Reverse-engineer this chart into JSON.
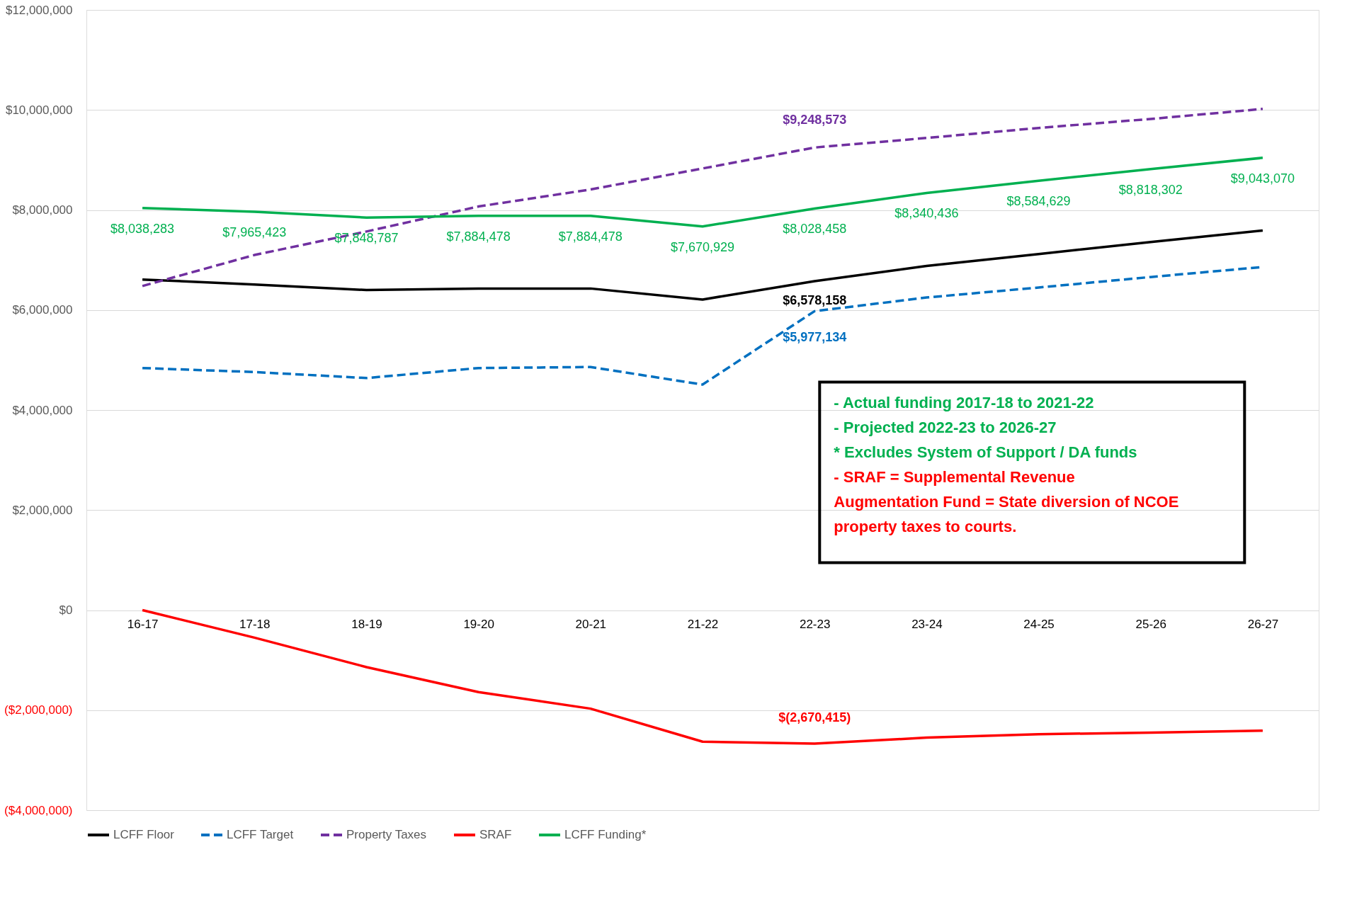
{
  "chart_data": {
    "type": "line",
    "categories": [
      "16-17",
      "17-18",
      "18-19",
      "19-20",
      "20-21",
      "21-22",
      "22-23",
      "23-24",
      "24-25",
      "25-26",
      "26-27"
    ],
    "series": [
      {
        "name": "LCFF Floor",
        "color": "#000000",
        "line_style": "solid",
        "values": [
          6610000,
          6510000,
          6400000,
          6430000,
          6430000,
          6210000,
          6578158,
          6880000,
          7120000,
          7360000,
          7590000
        ],
        "value_labels": [
          null,
          null,
          null,
          null,
          null,
          null,
          "$6,578,158",
          null,
          null,
          null,
          null
        ]
      },
      {
        "name": "LCFF Target",
        "color": "#0070c0",
        "line_style": "dashed",
        "values": [
          4840000,
          4760000,
          4640000,
          4840000,
          4860000,
          4510000,
          5977134,
          6250000,
          6450000,
          6660000,
          6860000
        ],
        "value_labels": [
          null,
          null,
          null,
          null,
          null,
          null,
          "$5,977,134",
          null,
          null,
          null,
          null
        ]
      },
      {
        "name": "Property Taxes",
        "color": "#7030a0",
        "line_style": "dashed",
        "values": [
          6480000,
          7100000,
          7570000,
          8070000,
          8410000,
          8830000,
          9248573,
          9440000,
          9640000,
          9820000,
          10020000
        ],
        "value_labels": [
          null,
          null,
          null,
          null,
          null,
          null,
          "$9,248,573",
          null,
          null,
          null,
          null
        ]
      },
      {
        "name": "SRAF",
        "color": "#ff0000",
        "line_style": "solid",
        "values": [
          0,
          -550000,
          -1140000,
          -1640000,
          -1970000,
          -2630000,
          -2670415,
          -2550000,
          -2480000,
          -2450000,
          -2410000
        ],
        "value_labels": [
          null,
          null,
          null,
          null,
          null,
          null,
          "$(2,670,415)",
          null,
          null,
          null,
          null
        ]
      },
      {
        "name": "LCFF Funding*",
        "color": "#00b050",
        "line_style": "solid",
        "values": [
          8038283,
          7965423,
          7848787,
          7884478,
          7884478,
          7670929,
          8028458,
          8340436,
          8584629,
          8818302,
          9043070
        ],
        "value_labels": [
          "$8,038,283",
          "$7,965,423",
          "$7,848,787",
          "$7,884,478",
          "$7,884,478",
          "$7,670,929",
          "$8,028,458",
          "$8,340,436",
          "$8,584,629",
          "$8,818,302",
          "$9,043,070"
        ]
      }
    ],
    "ylim": [
      -4000000,
      12000000
    ],
    "yticks": [
      {
        "value": -4000000,
        "label": "($4,000,000)"
      },
      {
        "value": -2000000,
        "label": "($2,000,000)"
      },
      {
        "value": 0,
        "label": "$0"
      },
      {
        "value": 2000000,
        "label": "$2,000,000"
      },
      {
        "value": 4000000,
        "label": "$4,000,000"
      },
      {
        "value": 6000000,
        "label": "$6,000,000"
      },
      {
        "value": 8000000,
        "label": "$8,000,000"
      },
      {
        "value": 10000000,
        "label": "$10,000,000"
      },
      {
        "value": 12000000,
        "label": "$12,000,000"
      }
    ],
    "grid": "y",
    "legend": "bottom",
    "annotations": [
      "- Actual funding 2017-18 to 2021-22",
      "- Projected 2022-23 to 2026-27",
      "* Excludes System of Support / DA funds",
      "- SRAF = Supplemental Revenue",
      "Augmentation Fund = State diversion of NCOE",
      "property taxes to courts."
    ]
  }
}
